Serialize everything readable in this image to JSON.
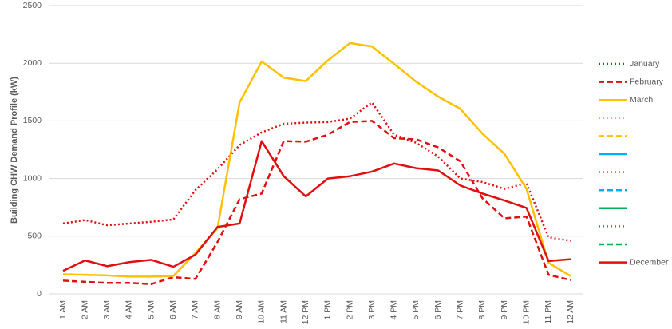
{
  "chart_data": {
    "type": "line",
    "y_label": "Building CHW Demand Profile (kW)",
    "categories": [
      "1 AM",
      "2 AM",
      "3 AM",
      "4 AM",
      "5 AM",
      "6 AM",
      "7 AM",
      "8 AM",
      "9 AM",
      "10 AM",
      "11 AM",
      "12 PM",
      "1 PM",
      "2 PM",
      "3 PM",
      "4 PM",
      "5 PM",
      "6 PM",
      "7 PM",
      "8 PM",
      "9 PM",
      "10 PM",
      "11 PM",
      "12 AM"
    ],
    "ylim": [
      0,
      2500
    ],
    "yticks": [
      0,
      500,
      1000,
      1500,
      2000,
      2500
    ],
    "grid": true,
    "legend": "right",
    "series": [
      {
        "name": "January",
        "color": "#e01010",
        "dash": "dot",
        "values": [
          610,
          640,
          595,
          610,
          625,
          645,
          900,
          1080,
          1290,
          1400,
          1475,
          1485,
          1490,
          1520,
          1660,
          1380,
          1310,
          1190,
          1000,
          970,
          910,
          960,
          490,
          460
        ]
      },
      {
        "name": "February",
        "color": "#e01010",
        "dash": "dash",
        "values": [
          115,
          105,
          95,
          95,
          85,
          145,
          130,
          450,
          820,
          870,
          1325,
          1320,
          1380,
          1490,
          1500,
          1350,
          1340,
          1270,
          1150,
          830,
          655,
          670,
          165,
          120
        ]
      },
      {
        "name": "March",
        "color": "#ffc000",
        "dash": "solid",
        "values": [
          170,
          165,
          160,
          150,
          150,
          155,
          355,
          570,
          1660,
          2015,
          1875,
          1845,
          2025,
          2175,
          2145,
          1995,
          1840,
          1710,
          1605,
          1390,
          1215,
          910,
          270,
          155
        ]
      },
      {
        "name": null,
        "color": "#ffc000",
        "dash": "dot",
        "values": [
          null,
          null,
          null,
          null,
          null,
          null,
          null,
          null,
          null,
          null,
          null,
          null,
          null,
          null,
          null,
          null,
          null,
          null,
          null,
          null,
          null,
          null,
          null,
          null
        ]
      },
      {
        "name": null,
        "color": "#ffc000",
        "dash": "dash",
        "values": [
          null,
          null,
          null,
          null,
          null,
          null,
          null,
          null,
          null,
          null,
          null,
          null,
          null,
          null,
          null,
          null,
          null,
          null,
          null,
          null,
          null,
          null,
          null,
          null
        ]
      },
      {
        "name": null,
        "color": "#00b0f0",
        "dash": "solid",
        "values": [
          null,
          null,
          null,
          null,
          null,
          null,
          null,
          null,
          null,
          null,
          null,
          null,
          null,
          null,
          null,
          null,
          null,
          null,
          null,
          null,
          null,
          null,
          null,
          null
        ]
      },
      {
        "name": null,
        "color": "#00b0f0",
        "dash": "dot",
        "values": [
          null,
          null,
          null,
          null,
          null,
          null,
          null,
          null,
          null,
          null,
          null,
          null,
          null,
          null,
          null,
          null,
          null,
          null,
          null,
          null,
          null,
          null,
          null,
          null
        ]
      },
      {
        "name": null,
        "color": "#00b0f0",
        "dash": "dash",
        "values": [
          null,
          null,
          null,
          null,
          null,
          null,
          null,
          null,
          null,
          null,
          null,
          null,
          null,
          null,
          null,
          null,
          null,
          null,
          null,
          null,
          null,
          null,
          null,
          null
        ]
      },
      {
        "name": null,
        "color": "#00b050",
        "dash": "solid",
        "values": [
          null,
          null,
          null,
          null,
          null,
          null,
          null,
          null,
          null,
          null,
          null,
          null,
          null,
          null,
          null,
          null,
          null,
          null,
          null,
          null,
          null,
          null,
          null,
          null
        ]
      },
      {
        "name": null,
        "color": "#00b050",
        "dash": "dot",
        "values": [
          null,
          null,
          null,
          null,
          null,
          null,
          null,
          null,
          null,
          null,
          null,
          null,
          null,
          null,
          null,
          null,
          null,
          null,
          null,
          null,
          null,
          null,
          null,
          null
        ]
      },
      {
        "name": null,
        "color": "#00b050",
        "dash": "dash",
        "values": [
          null,
          null,
          null,
          null,
          null,
          null,
          null,
          null,
          null,
          null,
          null,
          null,
          null,
          null,
          null,
          null,
          null,
          null,
          null,
          null,
          null,
          null,
          null,
          null
        ]
      },
      {
        "name": "December",
        "color": "#e01010",
        "dash": "solid",
        "values": [
          200,
          290,
          240,
          275,
          295,
          235,
          340,
          580,
          610,
          1325,
          1020,
          845,
          1000,
          1020,
          1060,
          1130,
          1090,
          1070,
          940,
          870,
          810,
          745,
          285,
          300
        ]
      }
    ]
  }
}
